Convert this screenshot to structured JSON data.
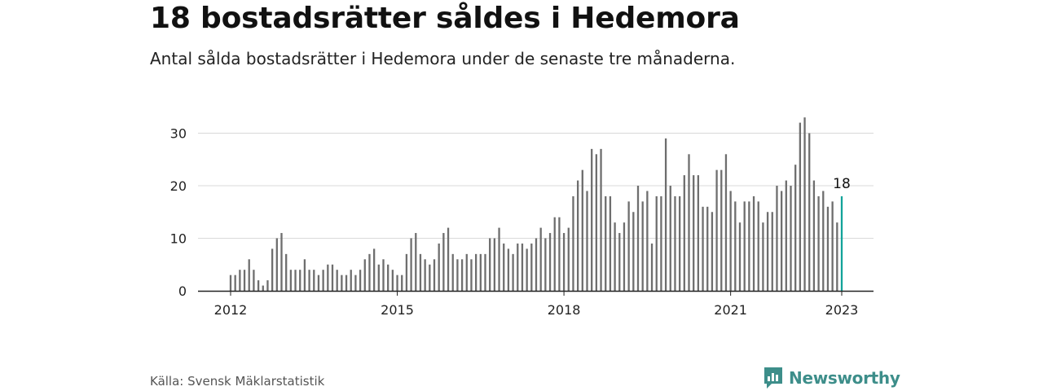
{
  "header": {
    "title": "18 bostadsrätter såldes i Hedemora",
    "subtitle": "Antal sålda bostadsrätter i Hedemora under de senaste tre månaderna."
  },
  "footer": {
    "source": "Källa: Svensk Mäklarstatistik",
    "brand": "Newsworthy",
    "brand_icon": "newsworthy-logo-icon"
  },
  "colors": {
    "bar": "#6e6e6e",
    "highlight": "#13a39a",
    "grid": "#d9d9d9",
    "axis": "#222222",
    "brand": "#3d8e8a"
  },
  "chart_data": {
    "type": "bar",
    "title": "",
    "xlabel": "",
    "ylabel": "",
    "ylim": [
      0,
      33
    ],
    "yticks": [
      "0",
      "10",
      "20",
      "30"
    ],
    "xticks": [
      "2012",
      "2015",
      "2018",
      "2021",
      "2023"
    ],
    "grid": true,
    "first_period": "2012-01",
    "last_period": "2023-01",
    "values": [
      3,
      3,
      4,
      4,
      6,
      4,
      2,
      1,
      2,
      8,
      10,
      11,
      7,
      4,
      4,
      4,
      6,
      4,
      4,
      3,
      4,
      5,
      5,
      4,
      3,
      3,
      4,
      3,
      4,
      6,
      7,
      8,
      5,
      6,
      5,
      4,
      3,
      3,
      7,
      10,
      11,
      7,
      6,
      5,
      6,
      9,
      11,
      12,
      7,
      6,
      6,
      7,
      6,
      7,
      7,
      7,
      10,
      10,
      12,
      9,
      8,
      7,
      9,
      9,
      8,
      9,
      10,
      12,
      10,
      11,
      14,
      14,
      11,
      12,
      18,
      21,
      23,
      19,
      27,
      26,
      27,
      18,
      18,
      13,
      11,
      13,
      17,
      15,
      20,
      17,
      19,
      9,
      18,
      18,
      29,
      20,
      18,
      18,
      22,
      26,
      22,
      22,
      16,
      16,
      15,
      23,
      23,
      26,
      19,
      17,
      13,
      17,
      17,
      18,
      17,
      13,
      15,
      15,
      20,
      19,
      21,
      20,
      24,
      32,
      33,
      30,
      21,
      18,
      19,
      16,
      17,
      13,
      18
    ],
    "highlight": {
      "label": "18",
      "value": 18,
      "index": 132
    }
  }
}
